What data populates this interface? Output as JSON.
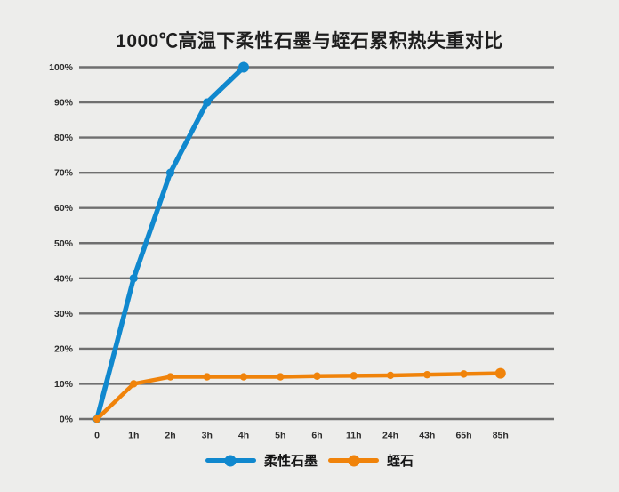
{
  "title": "1000℃高温下柔性石墨与蛭石累积热失重对比",
  "colors": {
    "background": "#ededeb",
    "gridline": "#6f6f6f",
    "tick_text": "#2b2b2b",
    "series_graphite": "#1088ce",
    "series_vermiculite": "#f0830a"
  },
  "chart_data": {
    "type": "line",
    "title": "1000℃高温下柔性石墨与蛭石累积热失重对比",
    "categories": [
      "0",
      "1h",
      "2h",
      "3h",
      "4h",
      "5h",
      "6h",
      "11h",
      "24h",
      "43h",
      "65h",
      "85h"
    ],
    "xlabel": "",
    "ylabel": "",
    "ylim": [
      0,
      100
    ],
    "y_tick_labels": [
      "0%",
      "10%",
      "20%",
      "30%",
      "40%",
      "50%",
      "60%",
      "70%",
      "80%",
      "90%",
      "100%"
    ],
    "grid": true,
    "legend_position": "bottom",
    "series": [
      {
        "name": "柔性石墨",
        "color": "#1088ce",
        "values": [
          0,
          40,
          70,
          90,
          100
        ]
      },
      {
        "name": "蛭石",
        "color": "#f0830a",
        "values": [
          0,
          10,
          12,
          12,
          12,
          12,
          12.2,
          12.3,
          12.4,
          12.6,
          12.8,
          13
        ]
      }
    ]
  },
  "legend": {
    "items": [
      {
        "label": "柔性石墨",
        "color": "#1088ce"
      },
      {
        "label": "蛭石",
        "color": "#f0830a"
      }
    ]
  }
}
